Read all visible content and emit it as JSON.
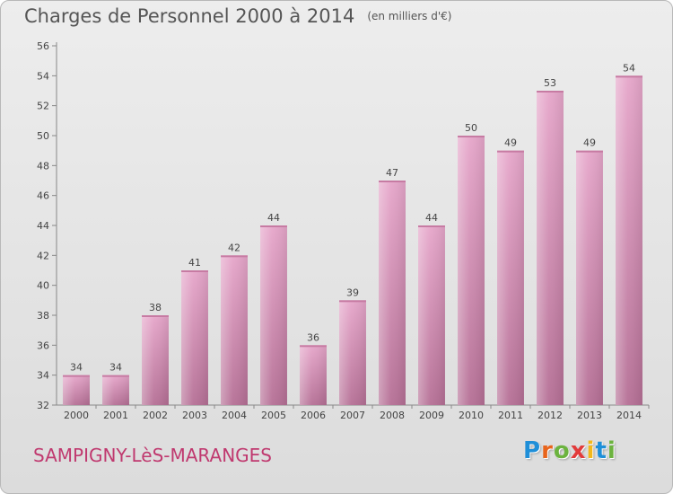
{
  "chart_data": {
    "type": "bar",
    "title": "Charges de Personnel 2000 à 2014",
    "subtitle": "(en milliers d'€)",
    "categories": [
      "2000",
      "2001",
      "2002",
      "2003",
      "2004",
      "2005",
      "2006",
      "2007",
      "2008",
      "2009",
      "2010",
      "2011",
      "2012",
      "2013",
      "2014"
    ],
    "values": [
      34,
      34,
      38,
      41,
      42,
      44,
      36,
      39,
      47,
      44,
      50,
      49,
      53,
      49,
      54
    ],
    "ylim": [
      32,
      56
    ],
    "yticks": [
      32,
      34,
      36,
      38,
      40,
      42,
      44,
      46,
      48,
      50,
      52,
      54,
      56
    ],
    "grid": false,
    "bar_color": "#d98cb5",
    "xlabel": "",
    "ylabel": ""
  },
  "footer": {
    "commune": "SAMPIGNY-LèS-MARANGES"
  },
  "logo": {
    "text": "Proxiti",
    "letters": [
      "P",
      "r",
      "o",
      "x",
      "i",
      "t",
      "i"
    ],
    "colors": [
      "#1f8fd8",
      "#e8641b",
      "#6cb33f",
      "#e23b3b",
      "#f3b81b",
      "#1f8fd8",
      "#6cb33f"
    ]
  }
}
